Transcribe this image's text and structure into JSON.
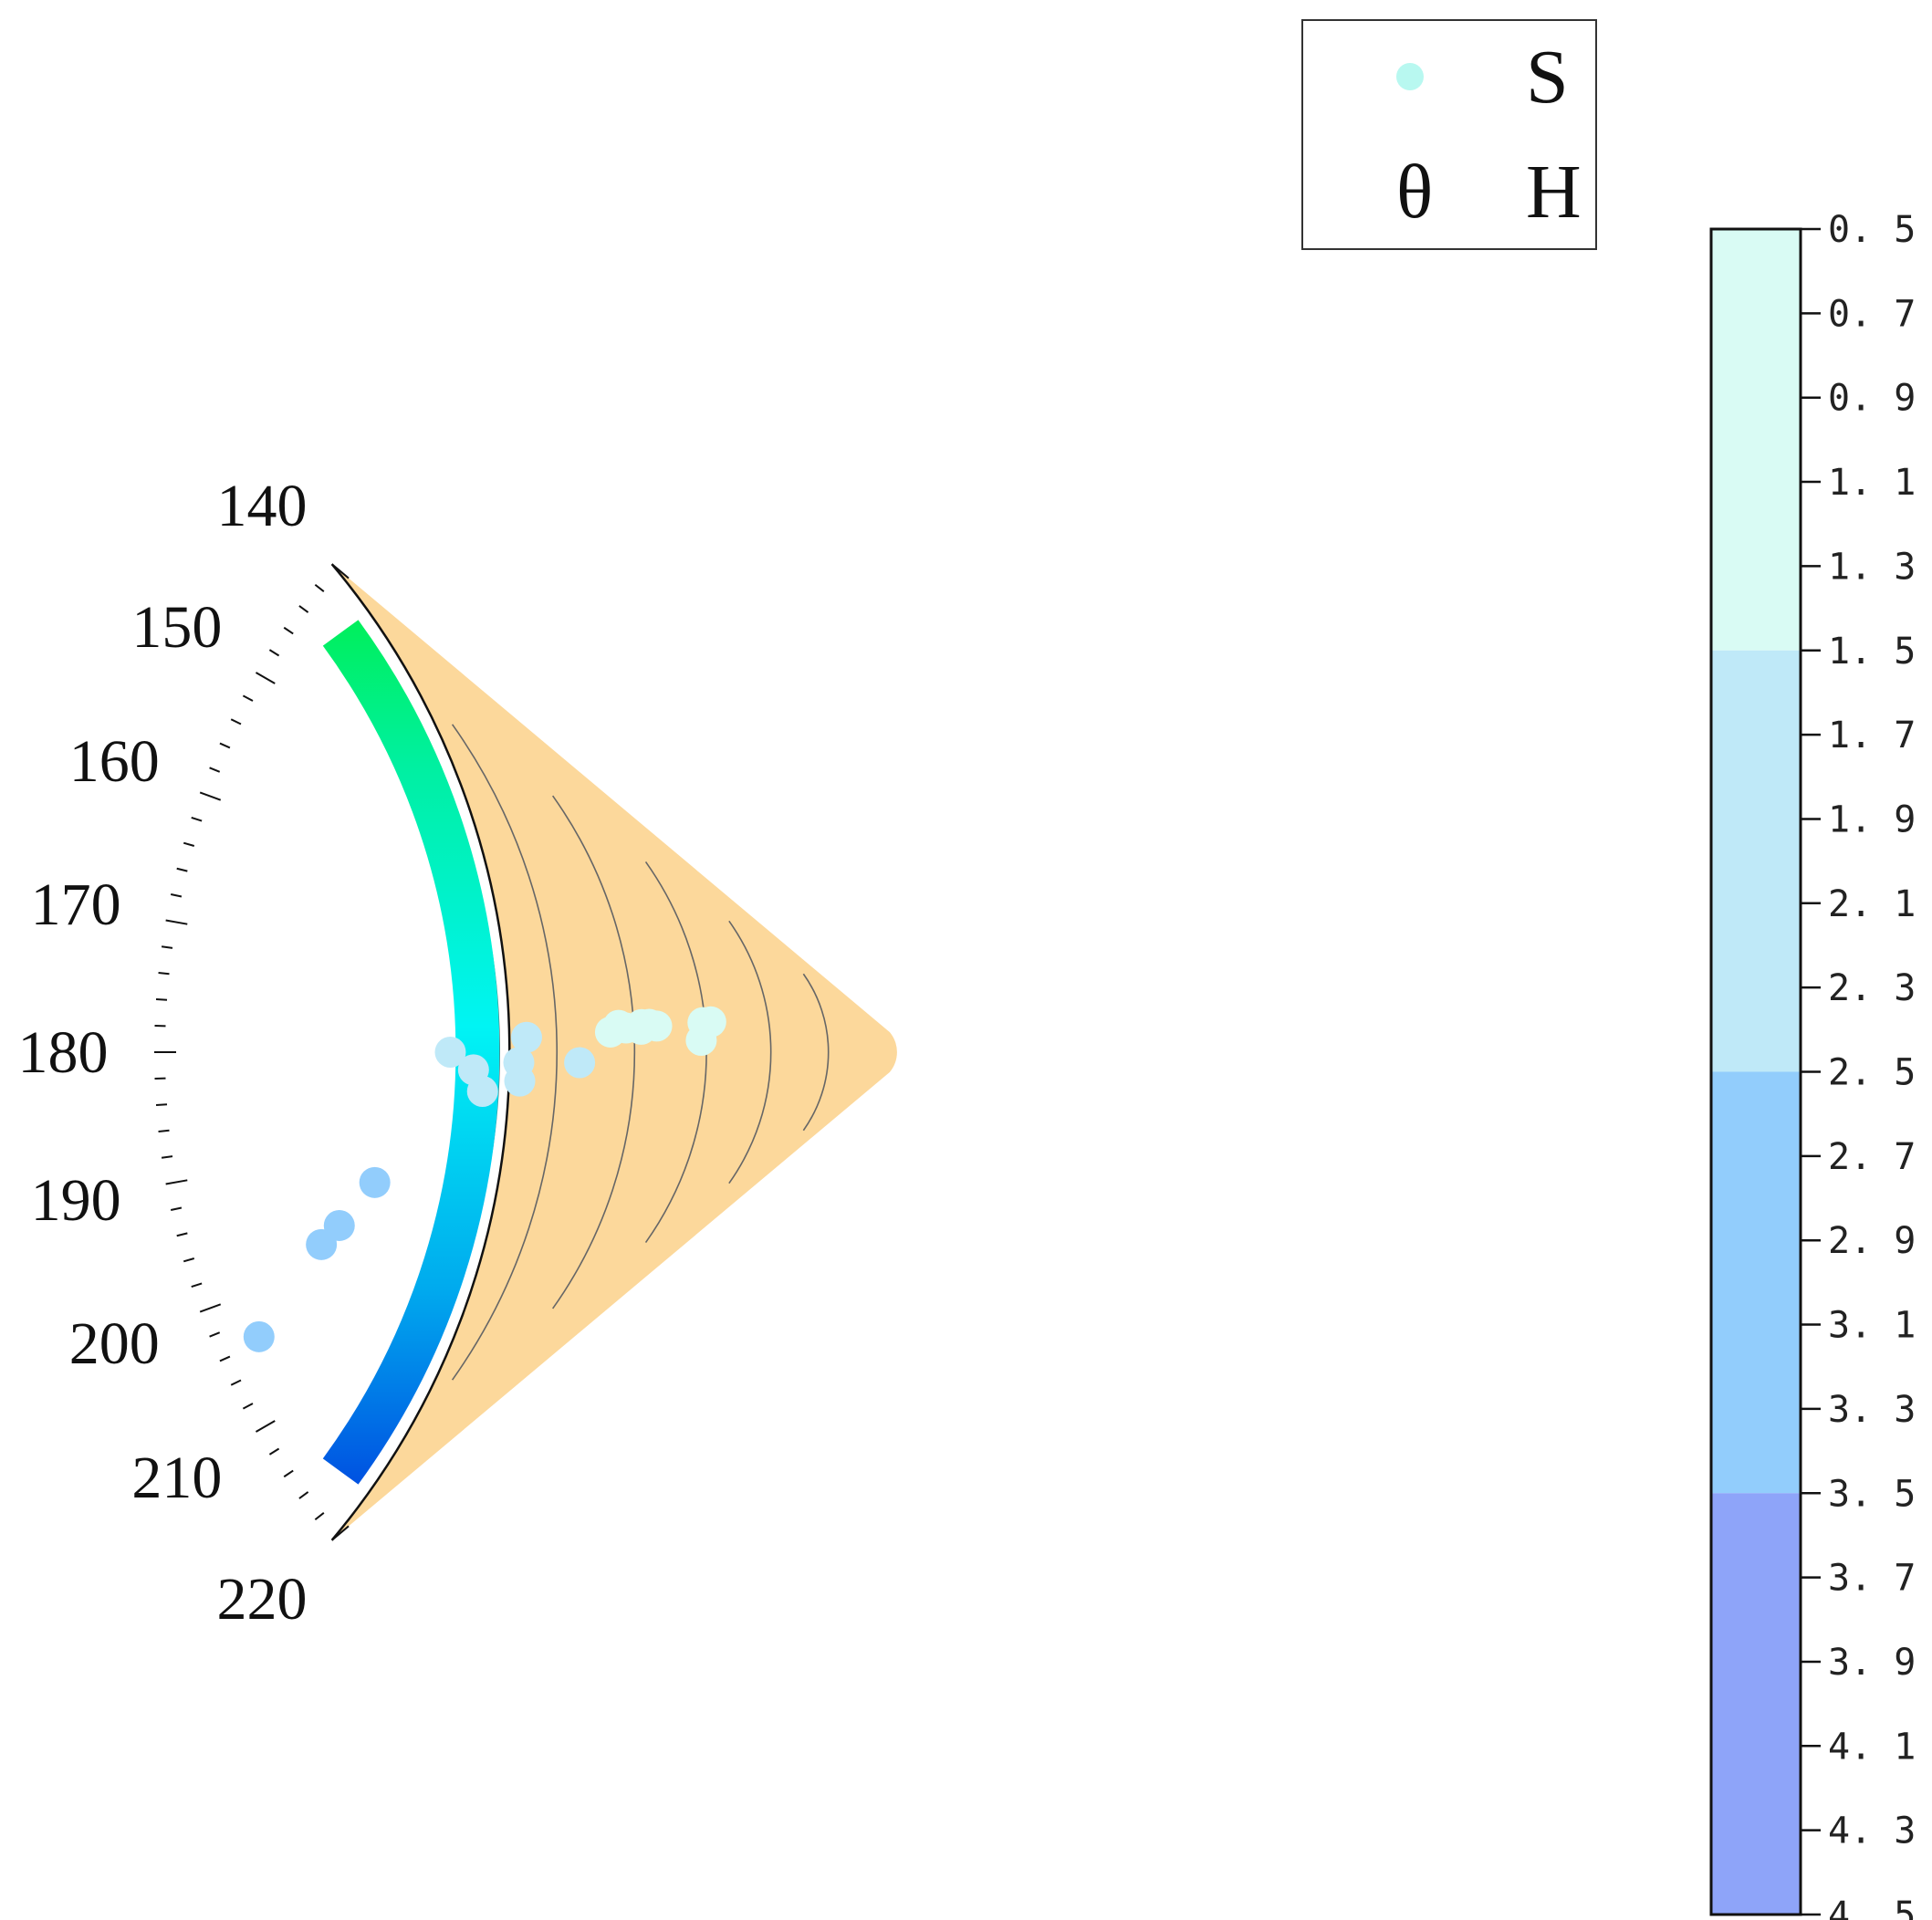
{
  "chart_data": {
    "type": "scatter",
    "subtype": "polar-sector",
    "title": "",
    "angular_axis": {
      "ticks": [
        140,
        150,
        160,
        170,
        180,
        190,
        200,
        210,
        220
      ],
      "range": [
        140,
        220
      ]
    },
    "background_color": "#fcd89b",
    "arc_gradient": [
      "#00ee22",
      "#00f0a0",
      "#00f4f4",
      "#00aaee",
      "#0033dd"
    ],
    "legend": {
      "position": "top-right",
      "entries": [
        {
          "symbol": "",
          "label": "S",
          "color": "#b8f8f0"
        },
        {
          "symbol": "θ",
          "label": "H"
        }
      ]
    },
    "colorbar": {
      "ticks": [
        "0. 5",
        "0. 7",
        "0. 9",
        "1. 1",
        "1. 3",
        "1. 5",
        "1. 7",
        "1. 9",
        "2. 1",
        "2. 3",
        "2. 5",
        "2. 7",
        "2. 9",
        "3. 1",
        "3. 3",
        "3. 5",
        "3. 7",
        "3. 9",
        "4. 1",
        "4. 3",
        "4. 5"
      ],
      "range": [
        0.5,
        4.5
      ],
      "bands": [
        {
          "from": 0.5,
          "to": 1.5,
          "color": "#d9fbf4"
        },
        {
          "from": 1.5,
          "to": 2.5,
          "color": "#bfe9f8"
        },
        {
          "from": 2.5,
          "to": 3.5,
          "color": "#92cdfc"
        },
        {
          "from": 3.5,
          "to": 4.5,
          "color": "#8ea4f9"
        }
      ]
    },
    "points": [
      {
        "theta": 171.5,
        "r": 0.27,
        "value": 1.2
      },
      {
        "theta": 172.0,
        "r": 0.28,
        "value": 1.2
      },
      {
        "theta": 174.2,
        "r": 0.34,
        "value": 1.2
      },
      {
        "theta": 174.0,
        "r": 0.35,
        "value": 1.2
      },
      {
        "theta": 175.2,
        "r": 0.36,
        "value": 1.2
      },
      {
        "theta": 174.2,
        "r": 0.36,
        "value": 1.2
      },
      {
        "theta": 174.8,
        "r": 0.39,
        "value": 1.2
      },
      {
        "theta": 175.2,
        "r": 0.38,
        "value": 1.2
      },
      {
        "theta": 176.2,
        "r": 0.4,
        "value": 1.2
      },
      {
        "theta": 176.8,
        "r": 0.28,
        "value": 1.2
      },
      {
        "theta": 177.8,
        "r": 0.51,
        "value": 1.9
      },
      {
        "theta": 180.0,
        "r": 0.61,
        "value": 1.9
      },
      {
        "theta": 182.3,
        "r": 0.58,
        "value": 1.9
      },
      {
        "theta": 181.5,
        "r": 0.52,
        "value": 1.9
      },
      {
        "theta": 181.8,
        "r": 0.44,
        "value": 1.9
      },
      {
        "theta": 184.2,
        "r": 0.52,
        "value": 1.9
      },
      {
        "theta": 185.2,
        "r": 0.57,
        "value": 1.9
      },
      {
        "theta": 193.6,
        "r": 0.73,
        "value": 2.9
      },
      {
        "theta": 196.8,
        "r": 0.79,
        "value": 2.9
      },
      {
        "theta": 198.0,
        "r": 0.82,
        "value": 2.9
      },
      {
        "theta": 203.5,
        "r": 0.94,
        "value": 2.9
      }
    ]
  }
}
